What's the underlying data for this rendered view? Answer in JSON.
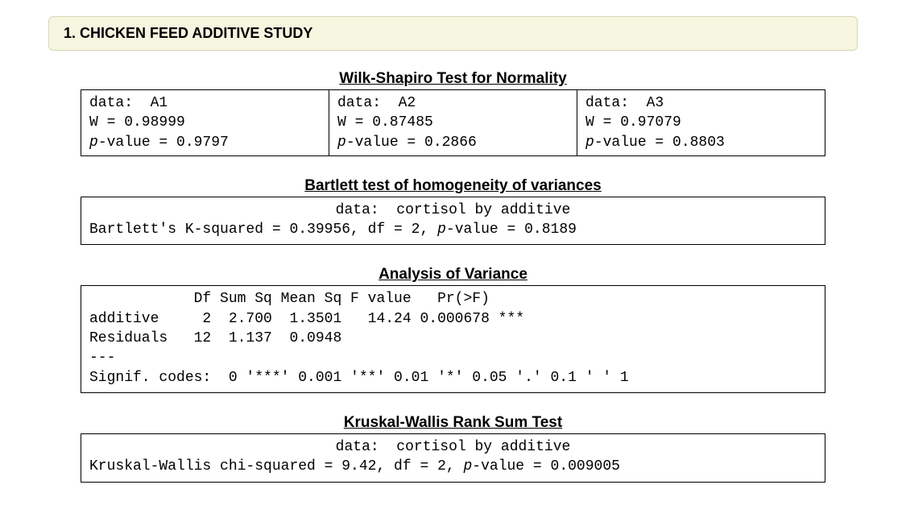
{
  "header": {
    "title": "1.  CHICKEN FEED ADDITIVE STUDY"
  },
  "shapiro": {
    "title": "Wilk-Shapiro Test for Normality",
    "cols": [
      {
        "data_label": "data:  A1",
        "W_label": "W = 0.98999",
        "p_prefix": "p",
        "p_suffix": "-value = 0.9797"
      },
      {
        "data_label": "data:  A2",
        "W_label": "W = 0.87485",
        "p_prefix": "p",
        "p_suffix": "-value = 0.2866"
      },
      {
        "data_label": "data:  A3",
        "W_label": "W = 0.97079",
        "p_prefix": "p",
        "p_suffix": "-value = 0.8803"
      }
    ]
  },
  "bartlett": {
    "title": "Bartlett test of homogeneity of variances",
    "data_line": "data:  cortisol by additive",
    "line_before_p": "Bartlett's K-squared = 0.39956, df = 2, ",
    "p_prefix": "p",
    "p_suffix": "-value = 0.8189"
  },
  "anova": {
    "title": "Analysis of Variance",
    "header_row": "            Df Sum Sq Mean Sq F value   Pr(>F)",
    "row1": "additive     2  2.700  1.3501   14.24 0.000678 ***",
    "row2": "Residuals   12  1.137  0.0948",
    "sep": "---",
    "signif": "Signif. codes:  0 '***' 0.001 '**' 0.01 '*' 0.05 '.' 0.1 ' ' 1"
  },
  "kruskal": {
    "title": "Kruskal-Wallis Rank Sum Test",
    "data_line": "data:  cortisol by additive",
    "line_before_p": "Kruskal-Wallis chi-squared = 9.42, df = 2, ",
    "p_prefix": "p",
    "p_suffix": "-value = 0.009005"
  }
}
